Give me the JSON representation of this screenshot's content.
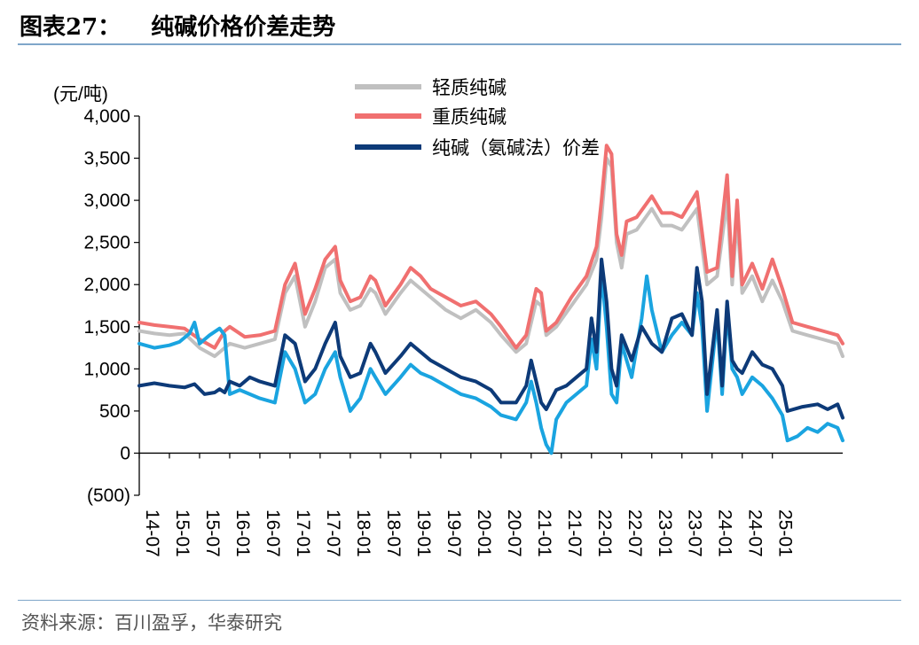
{
  "header": {
    "title_prefix": "图表27：",
    "title": "纯碱价格价差走势"
  },
  "source": "资料来源：百川盈孚，华泰研究",
  "chart_data": {
    "type": "line",
    "unit_label": "(元/吨)",
    "ylim": [
      -500,
      4000
    ],
    "yticks": [
      -500,
      0,
      500,
      1000,
      1500,
      2000,
      2500,
      3000,
      3500,
      4000
    ],
    "ytick_labels": [
      "(500)",
      "0",
      "500",
      "1,000",
      "1,500",
      "2,000",
      "2,500",
      "3,000",
      "3,500",
      "4,000"
    ],
    "xlim": [
      0,
      140
    ],
    "x_tick_labels": [
      "14-07",
      "15-01",
      "15-07",
      "16-01",
      "16-07",
      "17-01",
      "17-07",
      "18-01",
      "18-07",
      "19-01",
      "19-07",
      "20-01",
      "20-07",
      "21-01",
      "21-07",
      "22-01",
      "22-07",
      "23-01",
      "23-07",
      "24-01",
      "24-07",
      "25-01"
    ],
    "x_tick_positions": [
      0,
      6,
      12,
      18,
      24,
      30,
      36,
      42,
      48,
      54,
      60,
      66,
      72,
      78,
      84,
      90,
      96,
      102,
      108,
      114,
      120,
      126
    ],
    "grid": false,
    "legend_position": "top-center",
    "series": [
      {
        "name": "轻质纯碱",
        "color": "#c0c0c0",
        "points": [
          [
            0,
            1450
          ],
          [
            3,
            1420
          ],
          [
            6,
            1400
          ],
          [
            9,
            1420
          ],
          [
            12,
            1250
          ],
          [
            15,
            1150
          ],
          [
            17,
            1250
          ],
          [
            18,
            1300
          ],
          [
            21,
            1250
          ],
          [
            24,
            1300
          ],
          [
            27,
            1350
          ],
          [
            29,
            1900
          ],
          [
            31,
            2100
          ],
          [
            33,
            1500
          ],
          [
            35,
            1800
          ],
          [
            37,
            2200
          ],
          [
            39,
            2300
          ],
          [
            40,
            1900
          ],
          [
            42,
            1700
          ],
          [
            44,
            1750
          ],
          [
            46,
            1950
          ],
          [
            47,
            1900
          ],
          [
            49,
            1650
          ],
          [
            52,
            1900
          ],
          [
            54,
            2050
          ],
          [
            56,
            1950
          ],
          [
            58,
            1850
          ],
          [
            61,
            1700
          ],
          [
            64,
            1600
          ],
          [
            67,
            1700
          ],
          [
            70,
            1550
          ],
          [
            72,
            1400
          ],
          [
            75,
            1200
          ],
          [
            77,
            1300
          ],
          [
            79,
            1800
          ],
          [
            80,
            1750
          ],
          [
            81,
            1400
          ],
          [
            83,
            1500
          ],
          [
            86,
            1750
          ],
          [
            89,
            2000
          ],
          [
            91,
            2300
          ],
          [
            92,
            2800
          ],
          [
            93,
            3500
          ],
          [
            94,
            3400
          ],
          [
            95,
            2500
          ],
          [
            96,
            2200
          ],
          [
            97,
            2600
          ],
          [
            99,
            2650
          ],
          [
            102,
            2900
          ],
          [
            104,
            2700
          ],
          [
            106,
            2700
          ],
          [
            108,
            2650
          ],
          [
            111,
            2900
          ],
          [
            113,
            2000
          ],
          [
            115,
            2100
          ],
          [
            117,
            3000
          ],
          [
            118,
            2000
          ],
          [
            119,
            2800
          ],
          [
            120,
            1900
          ],
          [
            122,
            2100
          ],
          [
            124,
            1800
          ],
          [
            126,
            2050
          ],
          [
            128,
            1800
          ],
          [
            130,
            1450
          ],
          [
            133,
            1400
          ],
          [
            136,
            1350
          ],
          [
            139,
            1300
          ],
          [
            140,
            1150
          ]
        ]
      },
      {
        "name": "重质纯碱",
        "color": "#f07070",
        "points": [
          [
            0,
            1550
          ],
          [
            3,
            1520
          ],
          [
            6,
            1500
          ],
          [
            9,
            1480
          ],
          [
            12,
            1350
          ],
          [
            15,
            1250
          ],
          [
            17,
            1450
          ],
          [
            18,
            1500
          ],
          [
            21,
            1380
          ],
          [
            24,
            1400
          ],
          [
            27,
            1450
          ],
          [
            29,
            2000
          ],
          [
            31,
            2250
          ],
          [
            33,
            1650
          ],
          [
            35,
            1950
          ],
          [
            37,
            2300
          ],
          [
            39,
            2450
          ],
          [
            40,
            2050
          ],
          [
            42,
            1800
          ],
          [
            44,
            1850
          ],
          [
            46,
            2100
          ],
          [
            47,
            2050
          ],
          [
            49,
            1750
          ],
          [
            52,
            2000
          ],
          [
            54,
            2200
          ],
          [
            56,
            2100
          ],
          [
            58,
            1950
          ],
          [
            61,
            1850
          ],
          [
            64,
            1750
          ],
          [
            67,
            1800
          ],
          [
            70,
            1650
          ],
          [
            72,
            1500
          ],
          [
            75,
            1250
          ],
          [
            77,
            1400
          ],
          [
            79,
            1950
          ],
          [
            80,
            1900
          ],
          [
            81,
            1450
          ],
          [
            83,
            1550
          ],
          [
            86,
            1850
          ],
          [
            89,
            2100
          ],
          [
            91,
            2450
          ],
          [
            92,
            3000
          ],
          [
            93,
            3650
          ],
          [
            94,
            3550
          ],
          [
            95,
            2600
          ],
          [
            96,
            2350
          ],
          [
            97,
            2750
          ],
          [
            99,
            2800
          ],
          [
            102,
            3050
          ],
          [
            104,
            2850
          ],
          [
            106,
            2850
          ],
          [
            108,
            2800
          ],
          [
            111,
            3100
          ],
          [
            113,
            2150
          ],
          [
            115,
            2200
          ],
          [
            117,
            3300
          ],
          [
            118,
            2100
          ],
          [
            119,
            3000
          ],
          [
            120,
            2000
          ],
          [
            122,
            2250
          ],
          [
            124,
            1950
          ],
          [
            126,
            2300
          ],
          [
            128,
            1950
          ],
          [
            130,
            1550
          ],
          [
            133,
            1500
          ],
          [
            136,
            1450
          ],
          [
            139,
            1400
          ],
          [
            140,
            1300
          ]
        ]
      },
      {
        "name": "纯碱（氨碱法）价差",
        "color": "#0d3a78",
        "points": [
          [
            0,
            800
          ],
          [
            3,
            830
          ],
          [
            6,
            800
          ],
          [
            9,
            780
          ],
          [
            11,
            820
          ],
          [
            13,
            700
          ],
          [
            15,
            720
          ],
          [
            16,
            760
          ],
          [
            17,
            720
          ],
          [
            18,
            850
          ],
          [
            20,
            800
          ],
          [
            22,
            900
          ],
          [
            24,
            850
          ],
          [
            27,
            800
          ],
          [
            29,
            1400
          ],
          [
            31,
            1300
          ],
          [
            33,
            850
          ],
          [
            35,
            1000
          ],
          [
            37,
            1300
          ],
          [
            39,
            1550
          ],
          [
            40,
            1150
          ],
          [
            42,
            900
          ],
          [
            44,
            950
          ],
          [
            46,
            1300
          ],
          [
            47,
            1200
          ],
          [
            49,
            950
          ],
          [
            52,
            1150
          ],
          [
            54,
            1300
          ],
          [
            56,
            1200
          ],
          [
            58,
            1100
          ],
          [
            61,
            1000
          ],
          [
            64,
            900
          ],
          [
            67,
            850
          ],
          [
            70,
            750
          ],
          [
            72,
            600
          ],
          [
            75,
            600
          ],
          [
            77,
            800
          ],
          [
            78,
            1100
          ],
          [
            79,
            850
          ],
          [
            80,
            600
          ],
          [
            81,
            520
          ],
          [
            83,
            750
          ],
          [
            85,
            800
          ],
          [
            87,
            900
          ],
          [
            89,
            1000
          ],
          [
            90,
            1600
          ],
          [
            91,
            1200
          ],
          [
            92,
            2300
          ],
          [
            93,
            1800
          ],
          [
            94,
            1000
          ],
          [
            95,
            800
          ],
          [
            96,
            1400
          ],
          [
            98,
            1100
          ],
          [
            100,
            1500
          ],
          [
            102,
            1300
          ],
          [
            104,
            1200
          ],
          [
            106,
            1600
          ],
          [
            108,
            1650
          ],
          [
            110,
            1400
          ],
          [
            111,
            2200
          ],
          [
            112,
            1800
          ],
          [
            113,
            700
          ],
          [
            115,
            1700
          ],
          [
            116,
            800
          ],
          [
            117,
            1800
          ],
          [
            118,
            1100
          ],
          [
            119,
            1000
          ],
          [
            120,
            950
          ],
          [
            122,
            1200
          ],
          [
            124,
            1050
          ],
          [
            126,
            1000
          ],
          [
            128,
            800
          ],
          [
            129,
            500
          ],
          [
            132,
            550
          ],
          [
            135,
            580
          ],
          [
            137,
            520
          ],
          [
            139,
            580
          ],
          [
            140,
            420
          ]
        ]
      },
      {
        "name": "",
        "color": "#1aa4e0",
        "points": [
          [
            0,
            1300
          ],
          [
            3,
            1250
          ],
          [
            6,
            1280
          ],
          [
            8,
            1320
          ],
          [
            10,
            1420
          ],
          [
            11,
            1550
          ],
          [
            12,
            1300
          ],
          [
            14,
            1400
          ],
          [
            16,
            1480
          ],
          [
            17,
            1400
          ],
          [
            18,
            700
          ],
          [
            20,
            750
          ],
          [
            22,
            700
          ],
          [
            24,
            650
          ],
          [
            27,
            600
          ],
          [
            29,
            1200
          ],
          [
            31,
            1000
          ],
          [
            33,
            600
          ],
          [
            35,
            700
          ],
          [
            37,
            1000
          ],
          [
            39,
            1200
          ],
          [
            40,
            900
          ],
          [
            42,
            500
          ],
          [
            44,
            650
          ],
          [
            46,
            1000
          ],
          [
            47,
            900
          ],
          [
            49,
            700
          ],
          [
            52,
            900
          ],
          [
            54,
            1050
          ],
          [
            56,
            950
          ],
          [
            58,
            900
          ],
          [
            61,
            800
          ],
          [
            64,
            700
          ],
          [
            67,
            650
          ],
          [
            70,
            550
          ],
          [
            72,
            450
          ],
          [
            75,
            400
          ],
          [
            77,
            600
          ],
          [
            78,
            850
          ],
          [
            79,
            600
          ],
          [
            80,
            300
          ],
          [
            81,
            100
          ],
          [
            82,
            0
          ],
          [
            83,
            400
          ],
          [
            85,
            600
          ],
          [
            87,
            700
          ],
          [
            89,
            800
          ],
          [
            90,
            1350
          ],
          [
            91,
            1000
          ],
          [
            92,
            2150
          ],
          [
            93,
            1500
          ],
          [
            94,
            700
          ],
          [
            95,
            600
          ],
          [
            96,
            1300
          ],
          [
            98,
            900
          ],
          [
            100,
            1600
          ],
          [
            101,
            2100
          ],
          [
            102,
            1700
          ],
          [
            104,
            1200
          ],
          [
            106,
            1400
          ],
          [
            108,
            1550
          ],
          [
            110,
            1400
          ],
          [
            111,
            1900
          ],
          [
            112,
            1500
          ],
          [
            113,
            500
          ],
          [
            115,
            1600
          ],
          [
            116,
            700
          ],
          [
            117,
            1700
          ],
          [
            118,
            1000
          ],
          [
            119,
            900
          ],
          [
            120,
            700
          ],
          [
            122,
            900
          ],
          [
            124,
            800
          ],
          [
            126,
            650
          ],
          [
            128,
            450
          ],
          [
            129,
            150
          ],
          [
            131,
            200
          ],
          [
            133,
            300
          ],
          [
            135,
            250
          ],
          [
            137,
            350
          ],
          [
            139,
            300
          ],
          [
            140,
            150
          ]
        ]
      }
    ]
  }
}
